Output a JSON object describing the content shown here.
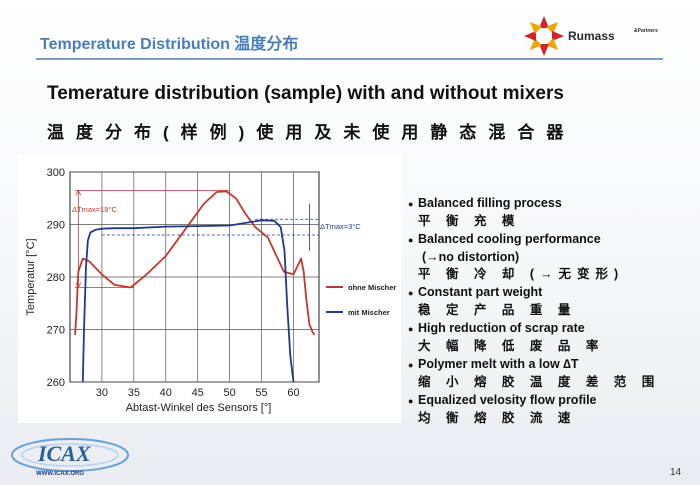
{
  "header": {
    "title": "Temperature Distribution 温度分布",
    "logo_text": "Rumass",
    "logo_sub": "&Partners"
  },
  "slide": {
    "title": "Temerature distribution (sample) with and without mixers",
    "subtitle": "温度分布(样例)使用及未使用静态混合器"
  },
  "bullets": [
    {
      "en": "Balanced filling process",
      "zh": "平 衡 充 模"
    },
    {
      "en": "Balanced cooling performance",
      "mid": "(→no  distortion)",
      "zh": "平 衡 冷 却 (→无变形)"
    },
    {
      "en": "Constant part weight",
      "zh": "稳 定 产 品 重 量"
    },
    {
      "en": "High reduction of scrap rate",
      "zh": "大 幅 降 低 废 品 率"
    },
    {
      "en": "Polymer melt with a low ∆T",
      "zh": "缩 小 熔 胶 温 度 差 范 围"
    },
    {
      "en": "Equalized velosity flow profile",
      "zh": "均 衡 熔 胶 流 速"
    }
  ],
  "footer": {
    "logo_text": "ICAX",
    "url": "WWW.ICAX.ORG"
  },
  "page_number": "14",
  "chart_data": {
    "type": "line",
    "xlabel": "Abtast-Winkel des Sensors [°]",
    "ylabel": "Temperatur [°C]",
    "xlim": [
      25,
      64
    ],
    "ylim": [
      260,
      300
    ],
    "xticks": [
      30,
      35,
      40,
      45,
      50,
      55,
      60
    ],
    "yticks": [
      260,
      270,
      280,
      290,
      300
    ],
    "grid": true,
    "legend": "right",
    "series": [
      {
        "name": "ohne Mischer",
        "color": "#c0392b",
        "x": [
          25.8,
          26.0,
          26.3,
          27.0,
          28.0,
          30.0,
          32.0,
          34.5,
          37.0,
          40.0,
          43.0,
          46.0,
          48.0,
          49.5,
          51.0,
          52.5,
          54.0,
          56.0,
          58.5,
          60.0,
          61.2,
          61.6,
          62.0,
          62.5,
          63.0,
          63.3
        ],
        "y": [
          269,
          273,
          281,
          283.5,
          283,
          280.5,
          278.5,
          278,
          280.5,
          284,
          289,
          294,
          296.2,
          296.3,
          295,
          292,
          289.5,
          287.5,
          281,
          280.5,
          283.5,
          281,
          276,
          271,
          269.5,
          269
        ]
      },
      {
        "name": "mit Mischer",
        "color": "#1f3a8a",
        "x": [
          27.0,
          27.2,
          27.5,
          27.8,
          28.2,
          29.0,
          30.0,
          32.0,
          35.0,
          40.0,
          45.0,
          50.0,
          55.0,
          57.0,
          58.0,
          58.6,
          59.0,
          59.5,
          60.0
        ],
        "y": [
          260,
          270,
          282,
          287,
          288.5,
          289,
          289.2,
          289.3,
          289.3,
          289.6,
          289.7,
          289.8,
          290.8,
          290.7,
          289.5,
          285,
          275,
          265,
          260
        ]
      }
    ],
    "annotations": [
      {
        "text": "ΔTmax=18°C",
        "color": "#c0392b"
      },
      {
        "text": "ΔTmax=3°C",
        "color": "#1f3a8a"
      }
    ],
    "delta_lines": [
      {
        "y": 296.5,
        "x0": 25.8,
        "x1": 50,
        "color": "#c0392b",
        "dashed": false
      },
      {
        "y": 278,
        "x0": 25.8,
        "x1": 35,
        "color": "#c0392b",
        "dashed": false
      },
      {
        "y": 291,
        "x0": 54,
        "x1": 64,
        "color": "#1f3a8a",
        "dashed": true
      },
      {
        "y": 288,
        "x0": 30,
        "x1": 64,
        "color": "#1f3a8a",
        "dashed": true
      }
    ]
  }
}
